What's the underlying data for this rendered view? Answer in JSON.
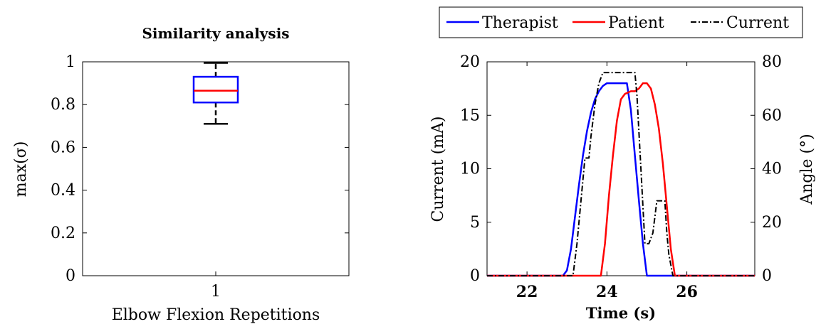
{
  "chart_data": [
    {
      "type": "box",
      "title": "Similarity analysis",
      "xlabel": "Elbow Flexion Repetitions",
      "ylabel": "max(σ)",
      "ylim": [
        0,
        1
      ],
      "yticks": [
        "0",
        "0.2",
        "0.4",
        "0.6",
        "0.8",
        "1"
      ],
      "categories": [
        "1"
      ],
      "box": {
        "min": 0.71,
        "q1": 0.81,
        "median": 0.865,
        "q3": 0.93,
        "max": 0.995
      },
      "colors": {
        "box": "#0000ff",
        "median": "#ff0000",
        "whisker": "#000000"
      }
    },
    {
      "type": "line",
      "xlabel": "Time (s)",
      "ylabel_left": "Current (mA)",
      "ylabel_right": "Angle (°)",
      "xlim": [
        21,
        27.7
      ],
      "ylim_left": [
        0,
        20
      ],
      "ylim_right": [
        0,
        80
      ],
      "xticks": [
        "22",
        "24",
        "26"
      ],
      "yticks_left": [
        "0",
        "5",
        "10",
        "15",
        "20"
      ],
      "yticks_right": [
        "0",
        "20",
        "40",
        "60",
        "80"
      ],
      "legend_position": "top",
      "series": [
        {
          "name": "Therapist",
          "axis": "right",
          "color": "#0000ff",
          "style": "solid",
          "points": [
            [
              21,
              0
            ],
            [
              22.9,
              0
            ],
            [
              23.0,
              2
            ],
            [
              23.1,
              10
            ],
            [
              23.2,
              22
            ],
            [
              23.3,
              34
            ],
            [
              23.4,
              45
            ],
            [
              23.5,
              54
            ],
            [
              23.6,
              61
            ],
            [
              23.7,
              66
            ],
            [
              23.8,
              69
            ],
            [
              23.9,
              71
            ],
            [
              24.0,
              72
            ],
            [
              24.5,
              72
            ],
            [
              24.6,
              62
            ],
            [
              24.7,
              45
            ],
            [
              24.8,
              28
            ],
            [
              24.9,
              12
            ],
            [
              25.0,
              0
            ],
            [
              27.7,
              0
            ]
          ]
        },
        {
          "name": "Patient",
          "axis": "right",
          "color": "#ff0000",
          "style": "solid",
          "points": [
            [
              21,
              0
            ],
            [
              23.85,
              0
            ],
            [
              23.95,
              12
            ],
            [
              24.05,
              30
            ],
            [
              24.15,
              45
            ],
            [
              24.25,
              58
            ],
            [
              24.35,
              66
            ],
            [
              24.45,
              68
            ],
            [
              24.6,
              69
            ],
            [
              24.7,
              69
            ],
            [
              24.8,
              70
            ],
            [
              24.9,
              72
            ],
            [
              25.0,
              72
            ],
            [
              25.1,
              70
            ],
            [
              25.2,
              64
            ],
            [
              25.3,
              55
            ],
            [
              25.4,
              42
            ],
            [
              25.5,
              26
            ],
            [
              25.6,
              10
            ],
            [
              25.7,
              0
            ],
            [
              27.7,
              0
            ]
          ]
        },
        {
          "name": "Current",
          "axis": "left",
          "color": "#000000",
          "style": "dashdot",
          "points": [
            [
              21,
              0
            ],
            [
              23.15,
              0
            ],
            [
              23.25,
              3
            ],
            [
              23.35,
              7
            ],
            [
              23.45,
              11
            ],
            [
              23.55,
              11
            ],
            [
              23.6,
              13
            ],
            [
              23.7,
              16
            ],
            [
              23.8,
              18
            ],
            [
              23.9,
              19
            ],
            [
              24.7,
              19
            ],
            [
              24.75,
              17
            ],
            [
              24.85,
              10
            ],
            [
              24.95,
              3
            ],
            [
              25.05,
              3
            ],
            [
              25.15,
              4
            ],
            [
              25.25,
              7
            ],
            [
              25.45,
              7
            ],
            [
              25.5,
              4
            ],
            [
              25.55,
              2
            ],
            [
              25.65,
              0
            ],
            [
              27.7,
              0
            ]
          ]
        }
      ]
    }
  ]
}
